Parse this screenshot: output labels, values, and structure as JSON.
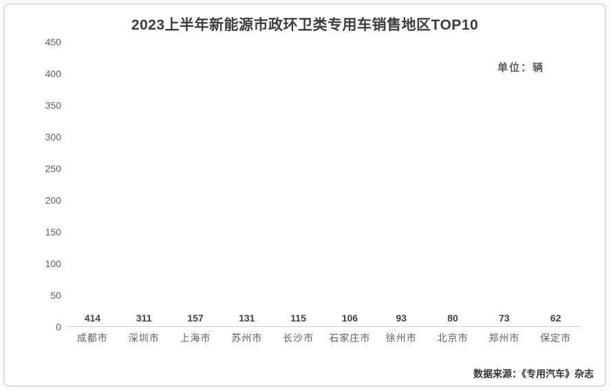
{
  "page": {
    "title": "2023上半年新能源市政环卫类专用车销售地区TOP10",
    "unit_label": "单位：辆",
    "source_text": "数据来源：《专用汽车》杂志"
  },
  "colors": {
    "bar": "#4d80bd",
    "title_text": "#3b3b41",
    "axis_text": "#5d5d68",
    "value_label_text": "#3e3e52",
    "card_border": "#dcdce6",
    "baseline": "#cfcfda"
  },
  "chart_data": {
    "type": "bar",
    "title": "2023上半年新能源市政环卫类专用车销售地区TOP10",
    "categories": [
      "成都市",
      "深圳市",
      "上海市",
      "苏州市",
      "长沙市",
      "石家庄市",
      "徐州市",
      "北京市",
      "郑州市",
      "保定市"
    ],
    "values": [
      414,
      311,
      157,
      131,
      115,
      106,
      93,
      80,
      73,
      62
    ],
    "xlabel": "",
    "ylabel": "",
    "unit": "辆",
    "ylim": [
      0,
      450
    ],
    "ytick_step": 50,
    "grid": false,
    "legend": false,
    "bar_color": "#4d80bd",
    "data_labels": true,
    "source": "数据来源：《专用汽车》杂志"
  }
}
